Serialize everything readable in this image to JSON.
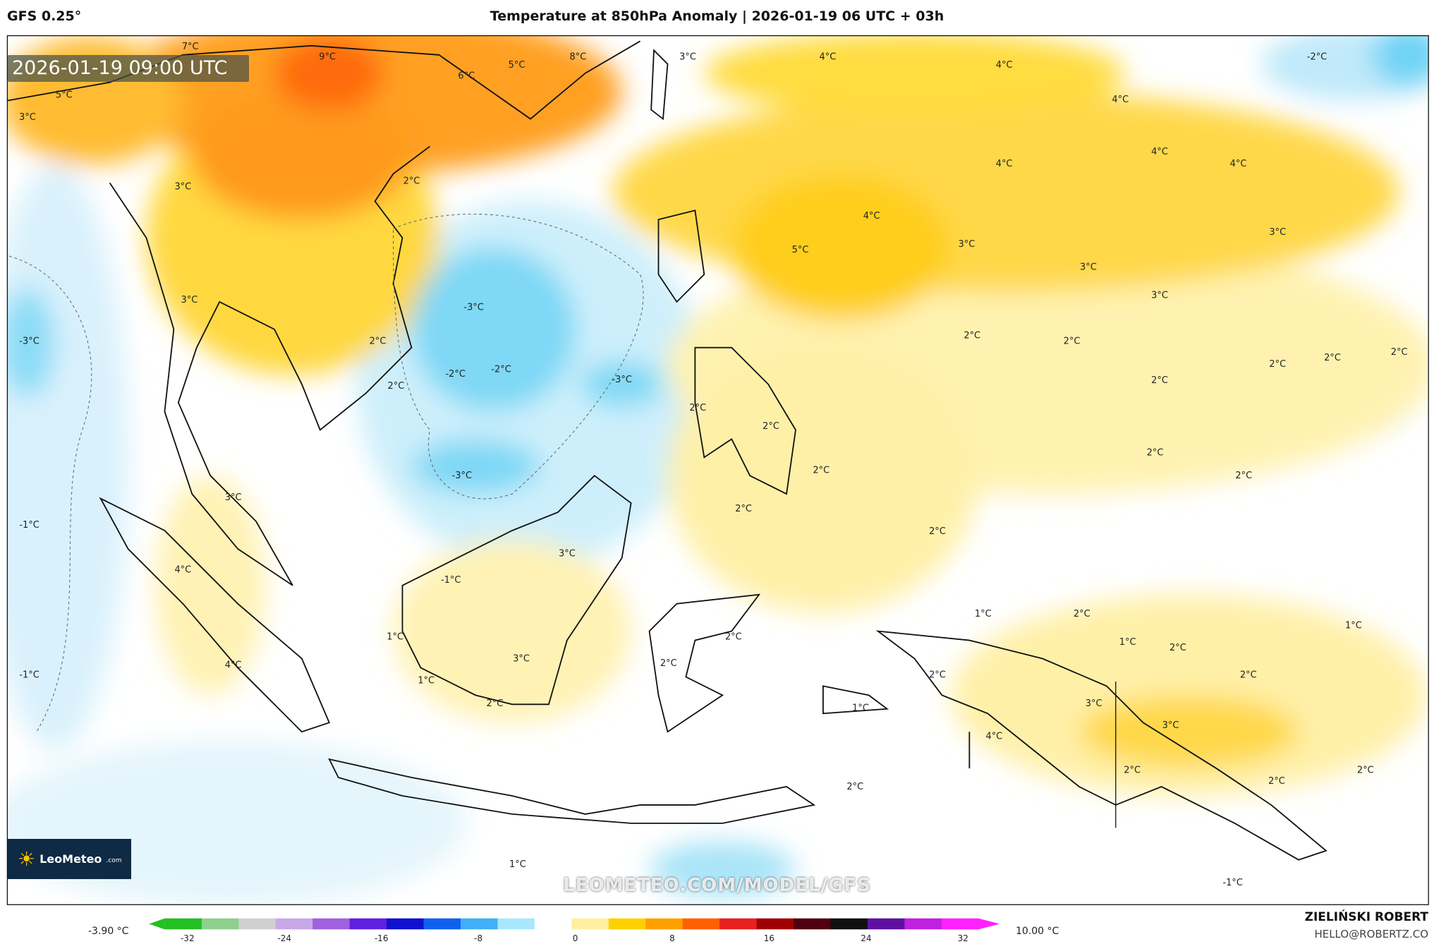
{
  "header": {
    "model": "GFS 0.25°",
    "title": "Temperature at 850hPa Anomaly | 2026-01-19 06 UTC + 03h"
  },
  "map": {
    "valid_time": "2026-01-19 09:00 UTC",
    "watermark": "LEOMETEO.COM/MODEL/GFS",
    "logo": {
      "name": "LeoMeteo",
      "domain": ".com"
    },
    "contour_labels": [
      "9°C",
      "6°C",
      "5°C",
      "8°C",
      "3°C",
      "4°C",
      "4°C",
      "-2°C",
      "4°C",
      "5°C",
      "3°C",
      "7°C",
      "2°C",
      "4°C",
      "4°C",
      "4°C",
      "3°C",
      "4°C",
      "5°C",
      "3°C",
      "3°C",
      "3°C",
      "3°C",
      "3°C",
      "-3°C",
      "-3°C",
      "2°C",
      "2°C",
      "2°C",
      "2°C",
      "2°C",
      "2°C",
      "-2°C",
      "-2°C",
      "-3°C",
      "2°C",
      "2°C",
      "2°C",
      "2°C",
      "2°C",
      "2°C",
      "2°C",
      "-3°C",
      "2°C",
      "3°C",
      "-1°C",
      "2°C",
      "3°C",
      "-1°C",
      "4°C",
      "1°C",
      "2°C",
      "1°C",
      "1°C",
      "2°C",
      "1°C",
      "2°C",
      "3°C",
      "2°C",
      "4°C",
      "-1°C",
      "1°C",
      "2°C",
      "2°C",
      "2°C",
      "3°C",
      "1°C",
      "3°C",
      "4°C",
      "2°C",
      "2°C",
      "2°C",
      "2°C",
      "1°C",
      "-1°C"
    ]
  },
  "colorbar": {
    "min_label": "-3.90 °C",
    "max_label": "10.00 °C",
    "ticks": [
      "-32",
      "-24",
      "-16",
      "-8",
      "0",
      "8",
      "16",
      "24",
      "32"
    ],
    "colors": [
      "#22c022",
      "#8ed08e",
      "#d0d0d0",
      "#c8a8e8",
      "#a060e0",
      "#6020e0",
      "#1010d0",
      "#1060f0",
      "#40b0f8",
      "#a8e8ff",
      "#ffffff",
      "#fff0a0",
      "#ffd000",
      "#ffa000",
      "#ff6000",
      "#e82020",
      "#a00000",
      "#500010",
      "#101010",
      "#6010a0",
      "#c020e0",
      "#ff20ff"
    ]
  },
  "credits": {
    "author": "ZIELIŃSKI ROBERT",
    "email": "HELLO@ROBERTZ.CO"
  }
}
